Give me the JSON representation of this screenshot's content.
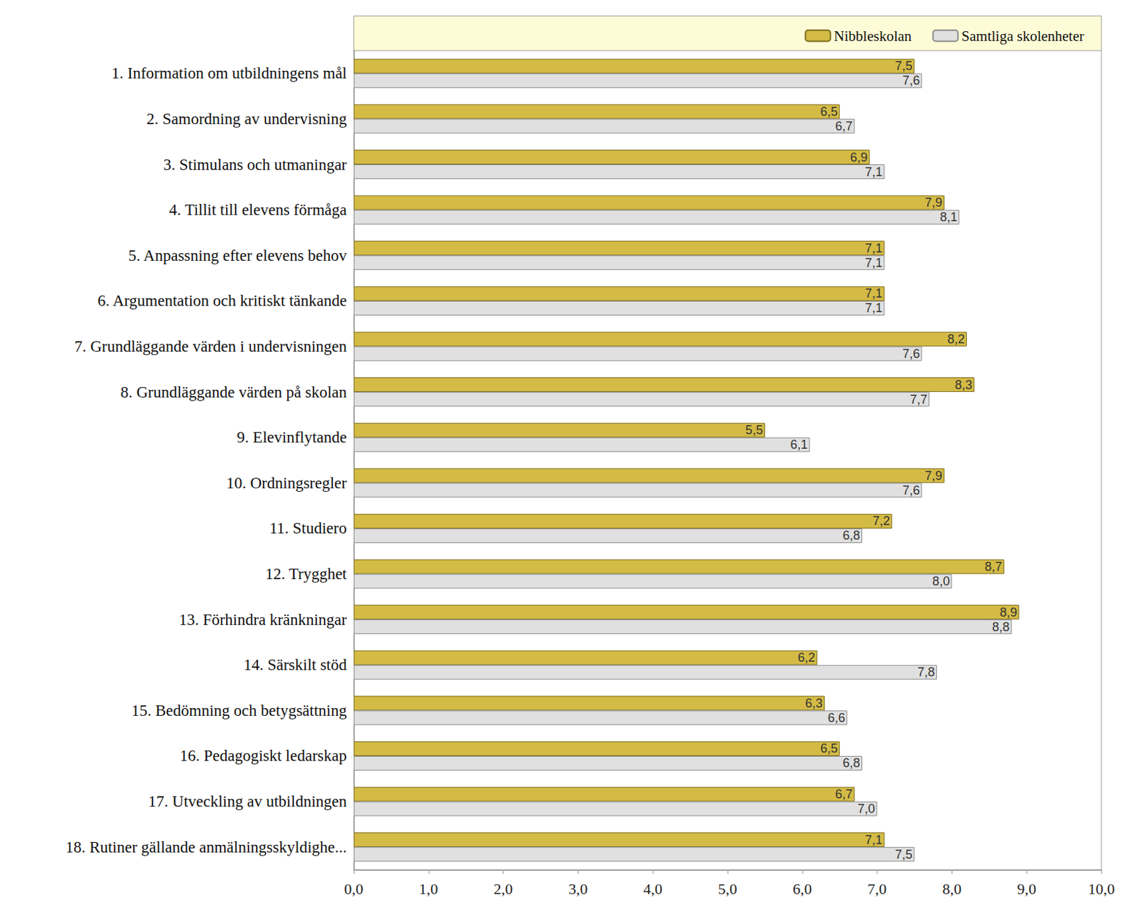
{
  "chart_data": {
    "type": "bar",
    "orientation": "horizontal",
    "categories": [
      "1. Information om utbildningens mål",
      "2. Samordning av undervisning",
      "3. Stimulans och utmaningar",
      "4. Tillit till elevens förmåga",
      "5. Anpassning efter elevens behov",
      "6. Argumentation och kritiskt tänkande",
      "7. Grundläggande värden i undervisningen",
      "8. Grundläggande värden på skolan",
      "9. Elevinflytande",
      "10. Ordningsregler",
      "11. Studiero",
      "12. Trygghet",
      "13. Förhindra kränkningar",
      "14. Särskilt stöd",
      "15. Bedömning och betygsättning",
      "16. Pedagogiskt ledarskap",
      "17. Utveckling av utbildningen",
      "18. Rutiner gällande anmälningsskyldighe..."
    ],
    "series": [
      {
        "name": "Nibbleskolan",
        "color": "#d4bb45",
        "values": [
          7.5,
          6.5,
          6.9,
          7.9,
          7.1,
          7.1,
          8.2,
          8.3,
          5.5,
          7.9,
          7.2,
          8.7,
          8.9,
          6.2,
          6.3,
          6.5,
          6.7,
          7.1
        ],
        "value_labels": [
          "7,5",
          "6,5",
          "6,9",
          "7,9",
          "7,1",
          "7,1",
          "8,2",
          "8,3",
          "5,5",
          "7,9",
          "7,2",
          "8,7",
          "8,9",
          "6,2",
          "6,3",
          "6,5",
          "6,7",
          "7,1"
        ]
      },
      {
        "name": "Samtliga skolenheter",
        "color": "#e0e0e0",
        "values": [
          7.6,
          6.7,
          7.1,
          8.1,
          7.1,
          7.1,
          7.6,
          7.7,
          6.1,
          7.6,
          6.8,
          8.0,
          8.8,
          7.8,
          6.6,
          6.8,
          7.0,
          7.5
        ],
        "value_labels": [
          "7,6",
          "6,7",
          "7,1",
          "8,1",
          "7,1",
          "7,1",
          "7,6",
          "7,7",
          "6,1",
          "7,6",
          "6,8",
          "8,0",
          "8,8",
          "7,8",
          "6,6",
          "6,8",
          "7,0",
          "7,5"
        ]
      }
    ],
    "xlim": [
      0,
      10
    ],
    "xticks": [
      {
        "value": 0,
        "label": "0,0"
      },
      {
        "value": 1,
        "label": "1,0"
      },
      {
        "value": 2,
        "label": "2,0"
      },
      {
        "value": 3,
        "label": "3,0"
      },
      {
        "value": 4,
        "label": "4,0"
      },
      {
        "value": 5,
        "label": "5,0"
      },
      {
        "value": 6,
        "label": "6,0"
      },
      {
        "value": 7,
        "label": "7,0"
      },
      {
        "value": 8,
        "label": "8,0"
      },
      {
        "value": 9,
        "label": "9,0"
      },
      {
        "value": 10,
        "label": "10,0"
      }
    ],
    "data_labels": true,
    "legend": "top-right",
    "grid": false
  }
}
